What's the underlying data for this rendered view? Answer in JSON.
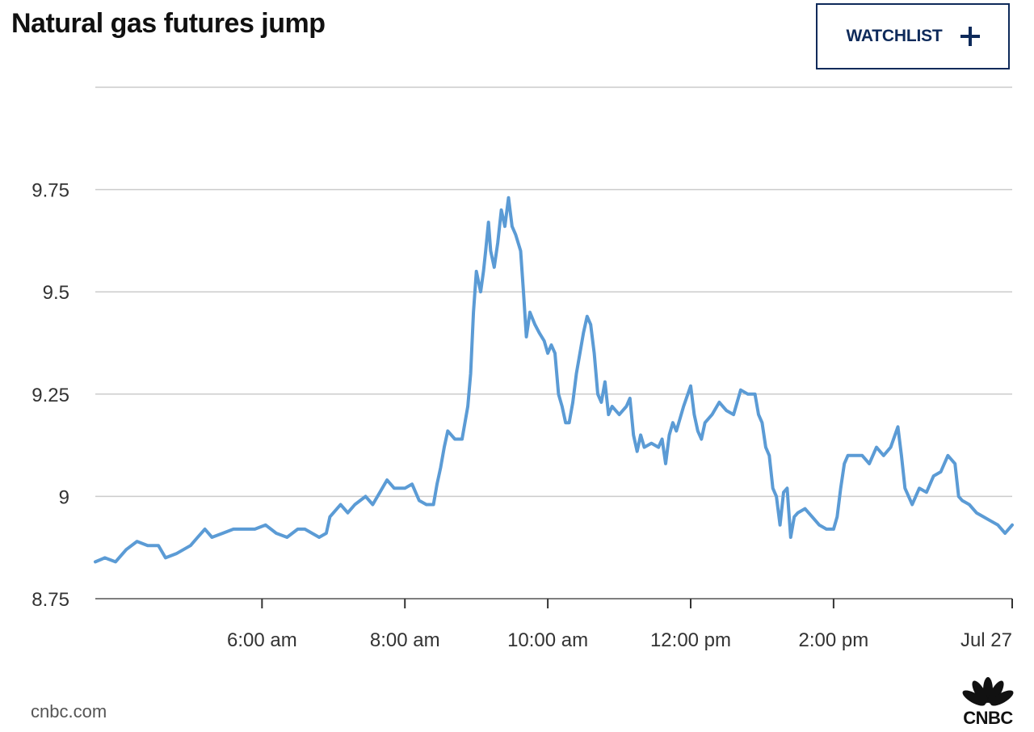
{
  "chart_data": {
    "type": "line",
    "title": "Natural gas futures jump",
    "xlabel": "",
    "ylabel": "",
    "ylim": [
      8.75,
      10.0
    ],
    "yticks": [
      {
        "value": 8.75,
        "label": "8.75"
      },
      {
        "value": 9.0,
        "label": "9"
      },
      {
        "value": 9.25,
        "label": "9.25"
      },
      {
        "value": 9.5,
        "label": "9.5"
      },
      {
        "value": 9.75,
        "label": "9.75"
      }
    ],
    "xlim": [
      3.667,
      16.5
    ],
    "xticks": [
      {
        "value": 6,
        "label": "6:00 am"
      },
      {
        "value": 8,
        "label": "8:00 am"
      },
      {
        "value": 10,
        "label": "10:00 am"
      },
      {
        "value": 12,
        "label": "12:00 pm"
      },
      {
        "value": 14,
        "label": "2:00 pm"
      },
      {
        "value": 16.5,
        "label": "Jul 27"
      }
    ],
    "grid": true,
    "line_color": "#5b9bd5",
    "series": [
      {
        "points": [
          [
            3.667,
            8.84
          ],
          [
            3.8,
            8.85
          ],
          [
            3.95,
            8.84
          ],
          [
            4.1,
            8.87
          ],
          [
            4.25,
            8.89
          ],
          [
            4.4,
            8.88
          ],
          [
            4.55,
            8.88
          ],
          [
            4.65,
            8.85
          ],
          [
            4.8,
            8.86
          ],
          [
            5.0,
            8.88
          ],
          [
            5.1,
            8.9
          ],
          [
            5.2,
            8.92
          ],
          [
            5.3,
            8.9
          ],
          [
            5.45,
            8.91
          ],
          [
            5.6,
            8.92
          ],
          [
            5.75,
            8.92
          ],
          [
            5.9,
            8.92
          ],
          [
            6.05,
            8.93
          ],
          [
            6.2,
            8.91
          ],
          [
            6.35,
            8.9
          ],
          [
            6.5,
            8.92
          ],
          [
            6.6,
            8.92
          ],
          [
            6.7,
            8.91
          ],
          [
            6.8,
            8.9
          ],
          [
            6.9,
            8.91
          ],
          [
            6.95,
            8.95
          ],
          [
            7.1,
            8.98
          ],
          [
            7.2,
            8.96
          ],
          [
            7.3,
            8.98
          ],
          [
            7.45,
            9.0
          ],
          [
            7.55,
            8.98
          ],
          [
            7.65,
            9.01
          ],
          [
            7.75,
            9.04
          ],
          [
            7.85,
            9.02
          ],
          [
            8.0,
            9.02
          ],
          [
            8.1,
            9.03
          ],
          [
            8.2,
            8.99
          ],
          [
            8.3,
            8.98
          ],
          [
            8.4,
            8.98
          ],
          [
            8.45,
            9.03
          ],
          [
            8.5,
            9.07
          ],
          [
            8.55,
            9.12
          ],
          [
            8.6,
            9.16
          ],
          [
            8.7,
            9.14
          ],
          [
            8.8,
            9.14
          ],
          [
            8.88,
            9.22
          ],
          [
            8.92,
            9.3
          ],
          [
            8.96,
            9.45
          ],
          [
            9.0,
            9.55
          ],
          [
            9.06,
            9.5
          ],
          [
            9.1,
            9.55
          ],
          [
            9.13,
            9.6
          ],
          [
            9.17,
            9.67
          ],
          [
            9.2,
            9.6
          ],
          [
            9.25,
            9.56
          ],
          [
            9.3,
            9.62
          ],
          [
            9.35,
            9.7
          ],
          [
            9.4,
            9.66
          ],
          [
            9.45,
            9.73
          ],
          [
            9.5,
            9.66
          ],
          [
            9.55,
            9.64
          ],
          [
            9.62,
            9.6
          ],
          [
            9.66,
            9.5
          ],
          [
            9.7,
            9.39
          ],
          [
            9.75,
            9.45
          ],
          [
            9.82,
            9.42
          ],
          [
            9.88,
            9.4
          ],
          [
            9.95,
            9.38
          ],
          [
            10.0,
            9.35
          ],
          [
            10.05,
            9.37
          ],
          [
            10.1,
            9.35
          ],
          [
            10.15,
            9.25
          ],
          [
            10.2,
            9.22
          ],
          [
            10.25,
            9.18
          ],
          [
            10.3,
            9.18
          ],
          [
            10.35,
            9.23
          ],
          [
            10.4,
            9.3
          ],
          [
            10.45,
            9.35
          ],
          [
            10.5,
            9.4
          ],
          [
            10.55,
            9.44
          ],
          [
            10.6,
            9.42
          ],
          [
            10.65,
            9.35
          ],
          [
            10.7,
            9.25
          ],
          [
            10.75,
            9.23
          ],
          [
            10.8,
            9.28
          ],
          [
            10.85,
            9.2
          ],
          [
            10.9,
            9.22
          ],
          [
            11.0,
            9.2
          ],
          [
            11.1,
            9.22
          ],
          [
            11.15,
            9.24
          ],
          [
            11.2,
            9.15
          ],
          [
            11.25,
            9.11
          ],
          [
            11.3,
            9.15
          ],
          [
            11.35,
            9.12
          ],
          [
            11.45,
            9.13
          ],
          [
            11.55,
            9.12
          ],
          [
            11.6,
            9.14
          ],
          [
            11.65,
            9.08
          ],
          [
            11.7,
            9.15
          ],
          [
            11.75,
            9.18
          ],
          [
            11.8,
            9.16
          ],
          [
            11.9,
            9.22
          ],
          [
            12.0,
            9.27
          ],
          [
            12.05,
            9.2
          ],
          [
            12.1,
            9.16
          ],
          [
            12.15,
            9.14
          ],
          [
            12.2,
            9.18
          ],
          [
            12.3,
            9.2
          ],
          [
            12.4,
            9.23
          ],
          [
            12.5,
            9.21
          ],
          [
            12.6,
            9.2
          ],
          [
            12.7,
            9.26
          ],
          [
            12.8,
            9.25
          ],
          [
            12.9,
            9.25
          ],
          [
            12.95,
            9.2
          ],
          [
            13.0,
            9.18
          ],
          [
            13.05,
            9.12
          ],
          [
            13.1,
            9.1
          ],
          [
            13.15,
            9.02
          ],
          [
            13.2,
            9.0
          ],
          [
            13.25,
            8.93
          ],
          [
            13.3,
            9.01
          ],
          [
            13.35,
            9.02
          ],
          [
            13.4,
            8.9
          ],
          [
            13.45,
            8.95
          ],
          [
            13.5,
            8.96
          ],
          [
            13.6,
            8.97
          ],
          [
            13.7,
            8.95
          ],
          [
            13.8,
            8.93
          ],
          [
            13.9,
            8.92
          ],
          [
            14.0,
            8.92
          ],
          [
            14.05,
            8.95
          ],
          [
            14.1,
            9.02
          ],
          [
            14.15,
            9.08
          ],
          [
            14.2,
            9.1
          ],
          [
            14.3,
            9.1
          ],
          [
            14.4,
            9.1
          ],
          [
            14.5,
            9.08
          ],
          [
            14.6,
            9.12
          ],
          [
            14.7,
            9.1
          ],
          [
            14.8,
            9.12
          ],
          [
            14.9,
            9.17
          ],
          [
            14.95,
            9.1
          ],
          [
            15.0,
            9.02
          ],
          [
            15.05,
            9.0
          ],
          [
            15.1,
            8.98
          ],
          [
            15.2,
            9.02
          ],
          [
            15.3,
            9.01
          ],
          [
            15.4,
            9.05
          ],
          [
            15.5,
            9.06
          ],
          [
            15.6,
            9.1
          ],
          [
            15.7,
            9.08
          ],
          [
            15.75,
            9.0
          ],
          [
            15.8,
            8.99
          ],
          [
            15.9,
            8.98
          ],
          [
            16.0,
            8.96
          ],
          [
            16.1,
            8.95
          ],
          [
            16.2,
            8.94
          ],
          [
            16.3,
            8.93
          ],
          [
            16.4,
            8.91
          ],
          [
            16.45,
            8.92
          ],
          [
            16.5,
            8.93
          ]
        ]
      }
    ]
  },
  "watchlist_label": "WATCHLIST",
  "source_label": "cnbc.com",
  "logo_text": "CNBC"
}
